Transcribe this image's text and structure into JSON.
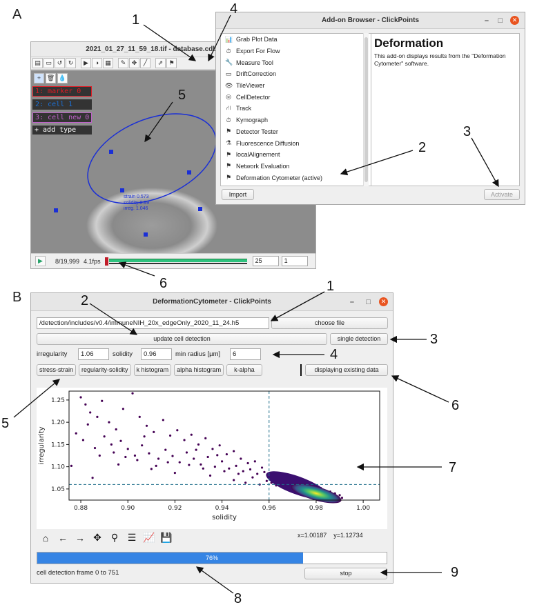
{
  "labels": {
    "panel_a": "A",
    "panel_b": "B"
  },
  "callouts_a": [
    "1",
    "4",
    "5",
    "2",
    "3",
    "6"
  ],
  "callouts_b": [
    "1",
    "2",
    "3",
    "4",
    "5",
    "6",
    "7",
    "8",
    "9"
  ],
  "clickpoints": {
    "title": "2021_01_27_11_59_18.tif - database.cdb - ClickPoints",
    "toolbar_icons": [
      "save-icon",
      "open-icon",
      "undo-icon",
      "redo-icon",
      "play-icon",
      "contrast-icon",
      "film-icon",
      "edit-icon",
      "target-icon",
      "brush-icon",
      "export-icon",
      "flag-icon"
    ],
    "marker_tools": [
      "+",
      "🗑",
      "💧"
    ],
    "marker_types": [
      {
        "label": "1: marker 0",
        "color": "#e01b24"
      },
      {
        "label": "2: cell 1",
        "color": "#1c71d8"
      },
      {
        "label": "3: cell new 0",
        "color": "#c061cb"
      },
      {
        "label": "+ add type",
        "color": "#ffffff"
      }
    ],
    "ellipse_text": [
      "strain 0.573",
      "solidity 0.99",
      "irreg. 1.046"
    ],
    "frame_info": "8/19,999",
    "fps": "4.1fps",
    "fps_value": "25",
    "skip_value": "1"
  },
  "addon_browser": {
    "title": "Add-on Browser - ClickPoints",
    "items": [
      {
        "icon": "chart-icon",
        "glyph": "📊",
        "label": "Grab Plot Data"
      },
      {
        "icon": "clock-icon",
        "glyph": "⏱",
        "label": "Export For Flow"
      },
      {
        "icon": "wrench-icon",
        "glyph": "🔧",
        "label": "Measure Tool"
      },
      {
        "icon": "window-icon",
        "glyph": "▭",
        "label": "DriftCorrection"
      },
      {
        "icon": "eye-icon",
        "glyph": "👁",
        "label": "TileViewer"
      },
      {
        "icon": "target-icon",
        "glyph": "◎",
        "label": "CellDetector"
      },
      {
        "icon": "road-icon",
        "glyph": "⛙",
        "label": "Track"
      },
      {
        "icon": "clock-icon",
        "glyph": "⏱",
        "label": "Kymograph"
      },
      {
        "icon": "flag-icon",
        "glyph": "⚑",
        "label": "Detector Tester"
      },
      {
        "icon": "flask-icon",
        "glyph": "⚗",
        "label": "Fluorescence Diffusion"
      },
      {
        "icon": "flag-icon",
        "glyph": "⚑",
        "label": "localAlignement"
      },
      {
        "icon": "flag-icon",
        "glyph": "⚑",
        "label": "Network Evaluation"
      },
      {
        "icon": "flag-icon",
        "glyph": "⚑",
        "label": "Deformation Cytometer (active)"
      }
    ],
    "desc_title": "Deformation",
    "desc_text": "This add-on displays results from the \"Deformation Cytometer\" software.",
    "import_label": "Import",
    "activate_label": "Activate"
  },
  "deformation": {
    "title": "DeformationCytometer - ClickPoints",
    "file_path": "/detection/includes/v0.4/immuneNIH_20x_edgeOnly_2020_11_24.h5",
    "choose_file": "choose file",
    "update_detection": "update cell detection",
    "single_detection": "single detection",
    "irregularity_label": "irregularity",
    "irregularity_value": "1.06",
    "solidity_label": "solidity",
    "solidity_value": "0.96",
    "min_radius_label": "min radius [µm]",
    "min_radius_value": "6",
    "tabs": [
      "stress-strain",
      "regularity-solidity",
      "k histogram",
      "alpha histogram",
      "k-alpha"
    ],
    "status_button": "displaying existing data",
    "coords": {
      "x": "x=1.00187",
      "y": "y=1.12734"
    },
    "progress": {
      "value": 0.76,
      "label": "76%"
    },
    "status_text": "cell detection frame 0 to 751",
    "stop_label": "stop"
  },
  "chart_data": {
    "type": "scatter",
    "title": "",
    "xlabel": "solidity",
    "ylabel": "irregularity",
    "xlim": [
      0.875,
      1.007
    ],
    "ylim": [
      1.025,
      1.27
    ],
    "xticks": [
      "0.88",
      "0.90",
      "0.92",
      "0.94",
      "0.96",
      "0.98",
      "1.00"
    ],
    "yticks": [
      "1.05",
      "1.10",
      "1.15",
      "1.20",
      "1.25"
    ],
    "thresholds": {
      "x": 0.96,
      "y": 1.06
    },
    "density_center": {
      "x": 0.98,
      "y": 1.04
    },
    "points": [
      [
        0.88,
        1.256
      ],
      [
        0.882,
        1.24
      ],
      [
        0.884,
        1.222
      ],
      [
        0.887,
        1.212
      ],
      [
        0.889,
        1.248
      ],
      [
        0.892,
        1.2
      ],
      [
        0.895,
        1.184
      ],
      [
        0.898,
        1.23
      ],
      [
        0.902,
        1.265
      ],
      [
        0.905,
        1.212
      ],
      [
        0.908,
        1.192
      ],
      [
        0.911,
        1.178
      ],
      [
        0.915,
        1.205
      ],
      [
        0.918,
        1.17
      ],
      [
        0.921,
        1.182
      ],
      [
        0.924,
        1.16
      ],
      [
        0.927,
        1.172
      ],
      [
        0.93,
        1.15
      ],
      [
        0.933,
        1.164
      ],
      [
        0.936,
        1.14
      ],
      [
        0.939,
        1.148
      ],
      [
        0.942,
        1.128
      ],
      [
        0.945,
        1.135
      ],
      [
        0.948,
        1.118
      ],
      [
        0.951,
        1.108
      ],
      [
        0.954,
        1.112
      ],
      [
        0.957,
        1.098
      ],
      [
        0.878,
        1.175
      ],
      [
        0.881,
        1.16
      ],
      [
        0.886,
        1.142
      ],
      [
        0.89,
        1.168
      ],
      [
        0.893,
        1.15
      ],
      [
        0.897,
        1.158
      ],
      [
        0.9,
        1.14
      ],
      [
        0.903,
        1.125
      ],
      [
        0.906,
        1.148
      ],
      [
        0.909,
        1.13
      ],
      [
        0.913,
        1.118
      ],
      [
        0.916,
        1.138
      ],
      [
        0.919,
        1.124
      ],
      [
        0.922,
        1.11
      ],
      [
        0.925,
        1.132
      ],
      [
        0.928,
        1.118
      ],
      [
        0.931,
        1.105
      ],
      [
        0.934,
        1.122
      ],
      [
        0.937,
        1.1
      ],
      [
        0.94,
        1.112
      ],
      [
        0.943,
        1.096
      ],
      [
        0.946,
        1.102
      ],
      [
        0.949,
        1.09
      ],
      [
        0.952,
        1.094
      ],
      [
        0.955,
        1.084
      ],
      [
        0.958,
        1.088
      ],
      [
        0.96,
        1.078
      ],
      [
        0.962,
        1.08
      ],
      [
        0.964,
        1.072
      ],
      [
        0.966,
        1.074
      ],
      [
        0.968,
        1.066
      ],
      [
        0.97,
        1.068
      ],
      [
        0.972,
        1.06
      ],
      [
        0.974,
        1.062
      ],
      [
        0.976,
        1.055
      ],
      [
        0.978,
        1.057
      ],
      [
        0.98,
        1.05
      ],
      [
        0.982,
        1.052
      ],
      [
        0.984,
        1.046
      ],
      [
        0.986,
        1.044
      ],
      [
        0.988,
        1.04
      ],
      [
        0.99,
        1.036
      ],
      [
        0.876,
        1.102
      ],
      [
        0.885,
        1.075
      ],
      [
        0.896,
        1.105
      ],
      [
        0.91,
        1.095
      ],
      [
        0.92,
        1.086
      ],
      [
        0.935,
        1.08
      ],
      [
        0.945,
        1.07
      ],
      [
        0.95,
        1.064
      ],
      [
        0.956,
        1.06
      ],
      [
        0.963,
        1.058
      ],
      [
        0.967,
        1.052
      ],
      [
        0.969,
        1.047
      ],
      [
        0.971,
        1.043
      ],
      [
        0.973,
        1.049
      ],
      [
        0.975,
        1.044
      ],
      [
        0.977,
        1.04
      ],
      [
        0.979,
        1.038
      ],
      [
        0.981,
        1.036
      ],
      [
        0.983,
        1.039
      ],
      [
        0.985,
        1.035
      ],
      [
        0.987,
        1.033
      ],
      [
        0.989,
        1.031
      ],
      [
        0.991,
        1.03
      ],
      [
        0.959,
        1.068
      ],
      [
        0.961,
        1.064
      ],
      [
        0.965,
        1.062
      ],
      [
        0.947,
        1.084
      ],
      [
        0.953,
        1.076
      ],
      [
        0.941,
        1.09
      ],
      [
        0.932,
        1.096
      ],
      [
        0.926,
        1.104
      ],
      [
        0.917,
        1.11
      ],
      [
        0.912,
        1.102
      ],
      [
        0.904,
        1.115
      ],
      [
        0.899,
        1.122
      ],
      [
        0.894,
        1.132
      ],
      [
        0.888,
        1.125
      ],
      [
        0.883,
        1.195
      ],
      [
        0.907,
        1.168
      ],
      [
        0.929,
        1.138
      ],
      [
        0.938,
        1.126
      ]
    ]
  }
}
